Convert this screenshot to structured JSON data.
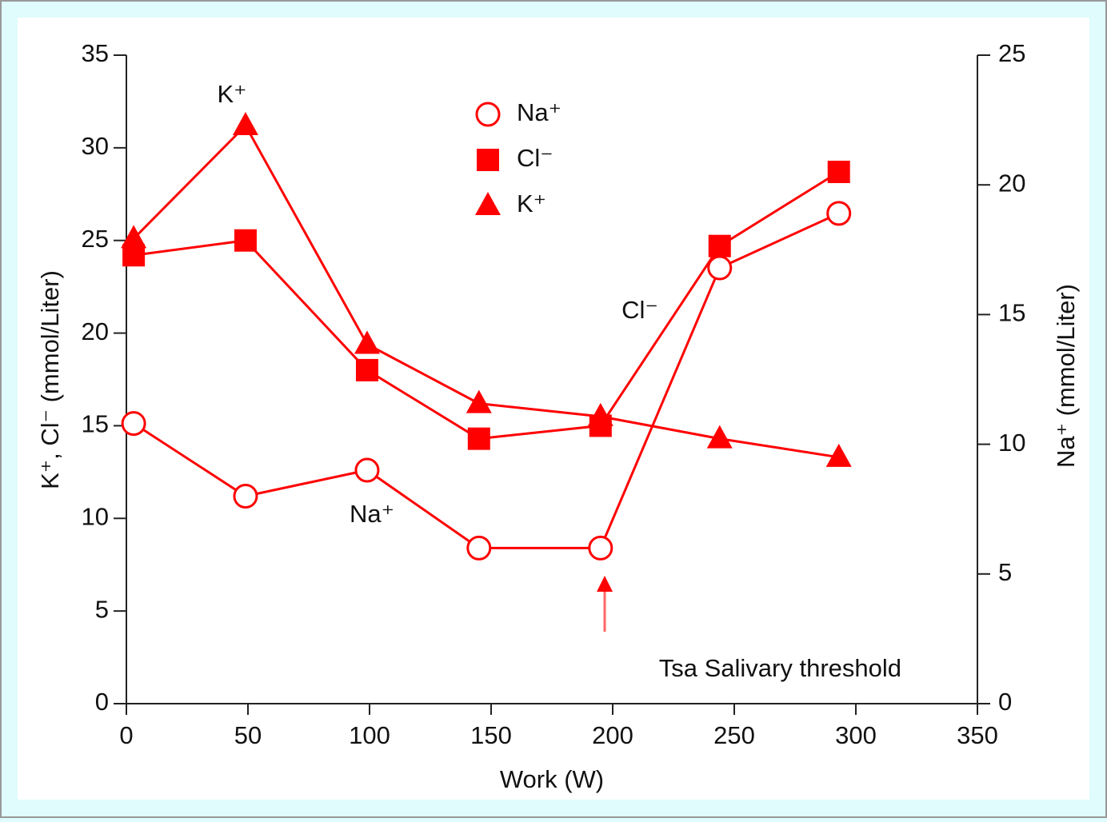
{
  "chart_data": {
    "type": "line",
    "x_label": "Work (W)",
    "y_label": "K⁺, Cl⁻ (mmol/Liter)",
    "y2_label": "Na⁺ (mmol/Liter)",
    "xlim": [
      0,
      350
    ],
    "xticks": [
      0,
      50,
      100,
      150,
      200,
      250,
      300,
      350
    ],
    "ylim": [
      0,
      35
    ],
    "yticks": [
      0,
      5,
      10,
      15,
      20,
      25,
      30,
      35
    ],
    "y2lim": [
      0,
      25
    ],
    "y2ticks": [
      0,
      5,
      10,
      15,
      20,
      25
    ],
    "x": [
      3,
      49,
      99,
      145,
      195,
      244,
      293
    ],
    "series": [
      {
        "name": "Na⁺",
        "color": "#ff0000",
        "marker": "open-circle",
        "axis": "y2",
        "values": [
          10.8,
          8.0,
          9.0,
          6.0,
          6.0,
          16.8,
          18.9
        ]
      },
      {
        "name": "Cl⁻",
        "color": "#ff0000",
        "marker": "square",
        "values": [
          24.2,
          25.0,
          18.0,
          14.3,
          15.0,
          24.7,
          28.7
        ]
      },
      {
        "name": "K⁺",
        "color": "#ff0000",
        "marker": "triangle",
        "values": [
          25.1,
          31.2,
          19.4,
          16.2,
          15.5,
          14.3,
          13.3
        ]
      }
    ],
    "annotations": [
      "K⁺",
      "Na⁺",
      "Cl⁻",
      "Tsa Salivary threshold"
    ]
  }
}
